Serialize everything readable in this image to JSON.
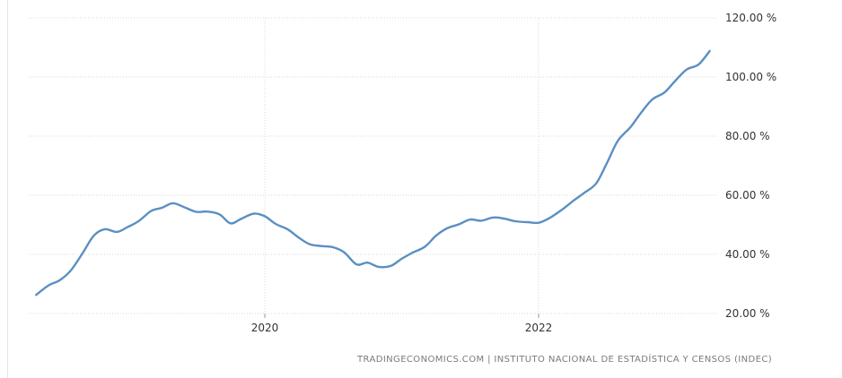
{
  "chart_data": {
    "type": "line",
    "title": "",
    "xlabel": "",
    "ylabel": "",
    "xlim": [
      2018.3,
      2023.3
    ],
    "ylim": [
      20,
      120
    ],
    "y_ticks": [
      20,
      40,
      60,
      80,
      100,
      120
    ],
    "y_tick_labels": [
      "20.00 %",
      "40.00 %",
      "60.00 %",
      "80.00 %",
      "100.00 %",
      "120.00 %"
    ],
    "x_ticks": [
      2020,
      2022
    ],
    "x_tick_labels": [
      "2020",
      "2022"
    ],
    "grid": true,
    "line_color": "#5b8fc2",
    "series": [
      {
        "x": [
          2018.33,
          2018.42,
          2018.5,
          2018.58,
          2018.67,
          2018.75,
          2018.83,
          2018.92,
          2019.0,
          2019.08,
          2019.17,
          2019.25,
          2019.33,
          2019.42,
          2019.5,
          2019.58,
          2019.67,
          2019.75,
          2019.83,
          2019.92,
          2020.0,
          2020.08,
          2020.17,
          2020.25,
          2020.33,
          2020.42,
          2020.5,
          2020.58,
          2020.67,
          2020.75,
          2020.83,
          2020.92,
          2021.0,
          2021.08,
          2021.17,
          2021.25,
          2021.33,
          2021.42,
          2021.5,
          2021.58,
          2021.67,
          2021.75,
          2021.83,
          2021.92,
          2022.0,
          2022.08,
          2022.17,
          2022.25,
          2022.33,
          2022.42,
          2022.5,
          2022.58,
          2022.67,
          2022.75,
          2022.83,
          2022.92,
          2023.0,
          2023.08,
          2023.17,
          2023.25
        ],
        "values": [
          26.3,
          29.5,
          31.2,
          34.4,
          40.5,
          46.3,
          48.5,
          47.6,
          49.3,
          51.3,
          54.7,
          55.8,
          57.3,
          55.8,
          54.4,
          54.5,
          53.5,
          50.5,
          52.1,
          53.8,
          52.9,
          50.3,
          48.4,
          45.6,
          43.4,
          42.8,
          42.4,
          40.7,
          36.6,
          37.2,
          35.8,
          36.1,
          38.5,
          40.6,
          42.6,
          46.3,
          48.8,
          50.2,
          51.8,
          51.4,
          52.5,
          52.1,
          51.2,
          50.9,
          50.7,
          52.3,
          55.1,
          58.0,
          60.7,
          64.0,
          71.0,
          78.5,
          83.0,
          88.0,
          92.4,
          94.8,
          98.8,
          102.5,
          104.3,
          108.8
        ]
      }
    ]
  },
  "source": "TRADINGECONOMICS.COM | INSTITUTO NACIONAL DE ESTADÍSTICA Y CENSOS (INDEC)"
}
